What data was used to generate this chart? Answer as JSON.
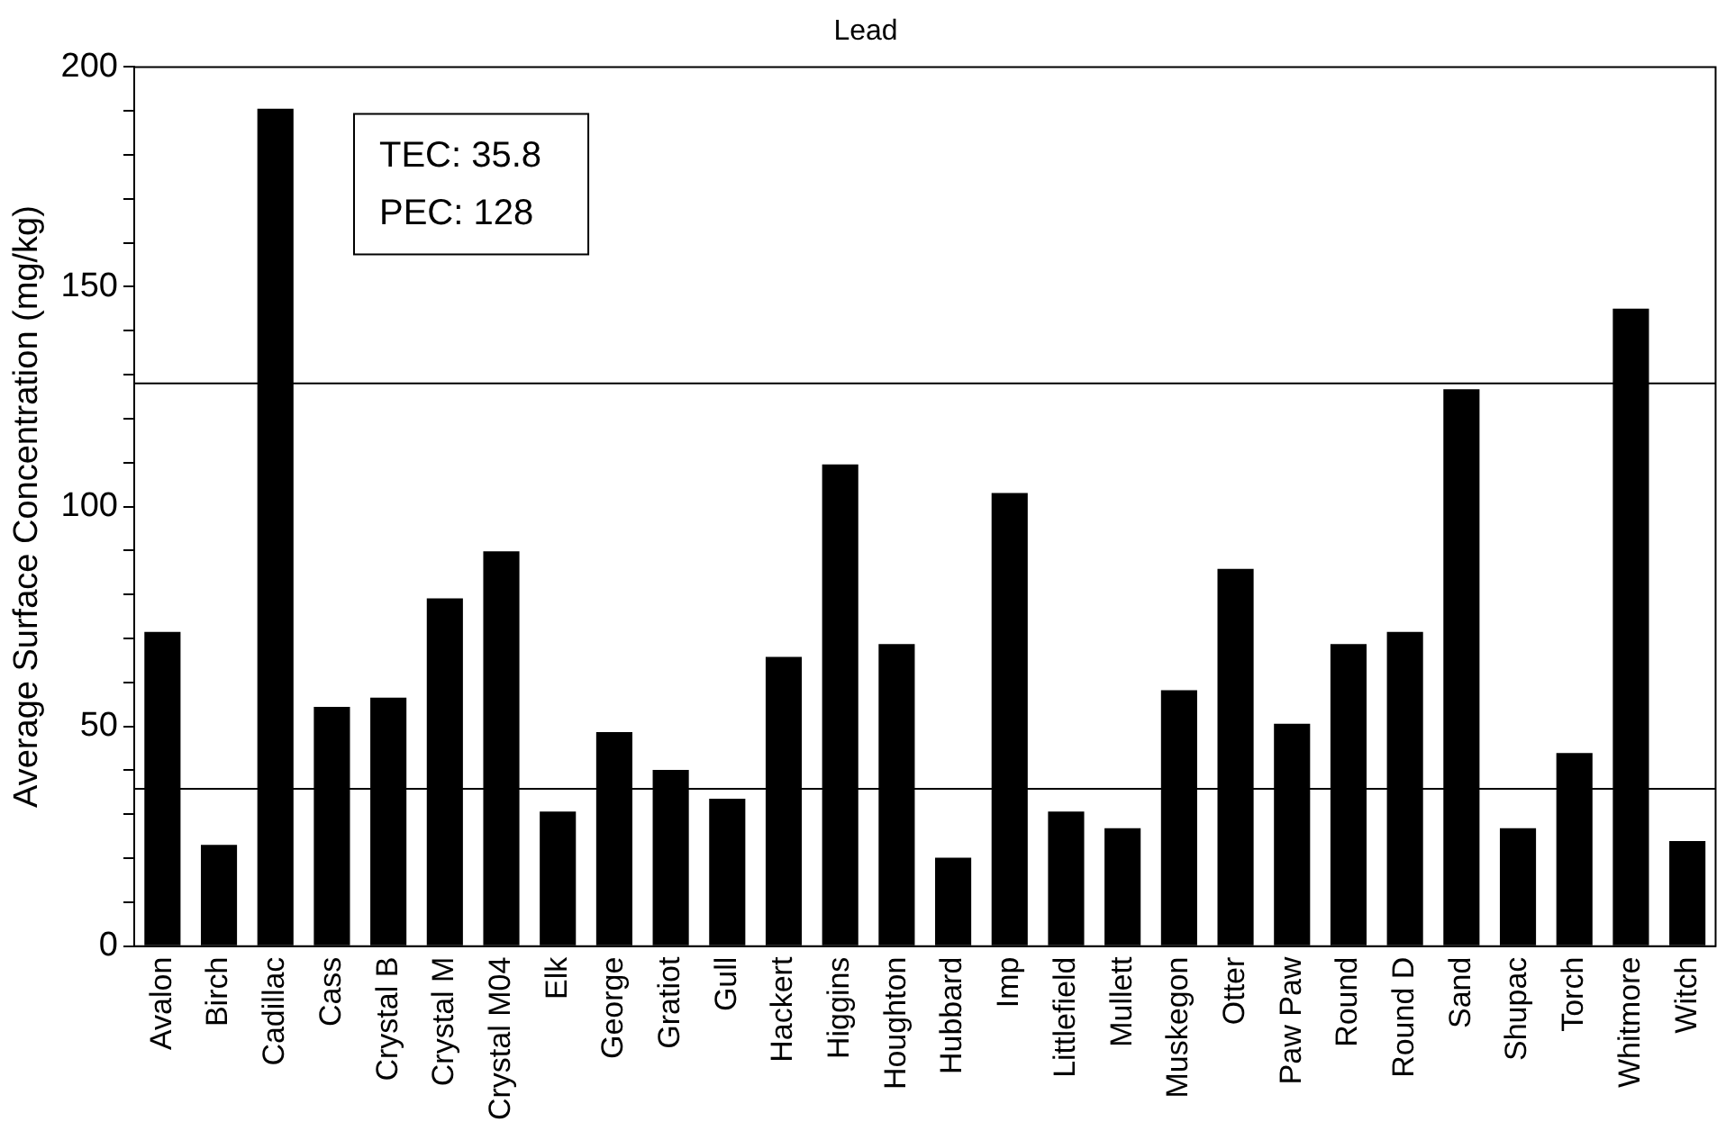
{
  "chart_data": {
    "type": "bar",
    "title": "Lead",
    "ylabel": "Average Surface Concentration (mg/kg)",
    "categories": [
      "Avalon",
      "Birch",
      "Cadillac",
      "Cass",
      "Crystal B",
      "Crystal M",
      "Crystal M04",
      "Elk",
      "George",
      "Gratiot",
      "Gull",
      "Hackert",
      "Higgins",
      "Houghton",
      "Hubbard",
      "Imp",
      "Littlefield",
      "Mullett",
      "Muskegon",
      "Otter",
      "Paw Paw",
      "Round",
      "Round D",
      "Sand",
      "Shupac",
      "Torch",
      "Whitmore",
      "Witch"
    ],
    "values": [
      71.5,
      23,
      190.5,
      54.4,
      56.5,
      79.1,
      89.8,
      30.6,
      48.7,
      40.1,
      33.5,
      65.8,
      109.6,
      68.7,
      20.1,
      103.1,
      30.6,
      26.8,
      58.2,
      85.8,
      50.6,
      68.7,
      71.5,
      126.7,
      26.8,
      43.9,
      145,
      23.9
    ],
    "color": "#000000",
    "ylim": [
      0,
      200
    ],
    "yticks": [
      0,
      {
        "value": 10,
        "label": null
      },
      {
        "value": 20,
        "label": null
      },
      {
        "value": 30,
        "label": null
      },
      {
        "value": 40,
        "label": null
      },
      50,
      {
        "value": 60,
        "label": null
      },
      {
        "value": 70,
        "label": null
      },
      {
        "value": 80,
        "label": null
      },
      {
        "value": 90,
        "label": null
      },
      100,
      {
        "value": 110,
        "label": null
      },
      {
        "value": 120,
        "label": null
      },
      {
        "value": 130,
        "label": null
      },
      {
        "value": 140,
        "label": null
      },
      150,
      {
        "value": 160,
        "label": null
      },
      {
        "value": 170,
        "label": null
      },
      {
        "value": 180,
        "label": null
      },
      {
        "value": 190,
        "label": null
      },
      200
    ],
    "ref_lines": [
      {
        "axis": "y",
        "value": 35.8,
        "color": "#000000"
      },
      {
        "axis": "y",
        "value": 128,
        "color": "#000000"
      }
    ],
    "annotations": [
      "TEC: 35.8",
      "PEC: 128"
    ],
    "grid": false,
    "legend": false
  }
}
